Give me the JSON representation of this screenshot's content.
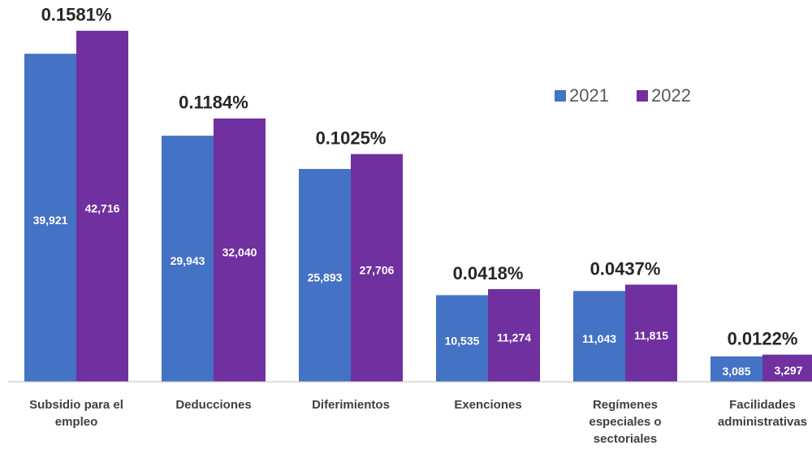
{
  "chart_data": {
    "type": "bar",
    "categories": [
      "Subsidio para el empleo",
      "Deducciones",
      "Diferimientos",
      "Exenciones",
      "Regímenes especiales o sectoriales",
      "Facilidades administrativas"
    ],
    "series": [
      {
        "name": "2021",
        "color": "#4472c4",
        "values": [
          39921,
          29943,
          25893,
          10535,
          11043,
          3085
        ],
        "value_labels": [
          "39,921",
          "29,943",
          "25,893",
          "10,535",
          "11,043",
          "3,085"
        ]
      },
      {
        "name": "2022",
        "color": "#7030a0",
        "values": [
          42716,
          32040,
          27706,
          11274,
          11815,
          3297
        ],
        "value_labels": [
          "42,716",
          "32,040",
          "27,706",
          "11,274",
          "11,815",
          "3,297"
        ]
      }
    ],
    "group_labels": [
      "0.1581%",
      "0.1184%",
      "0.1025%",
      "0.0418%",
      "0.0437%",
      "0.0122%"
    ],
    "ylim": [
      0,
      43000
    ],
    "legend": "upper right"
  }
}
